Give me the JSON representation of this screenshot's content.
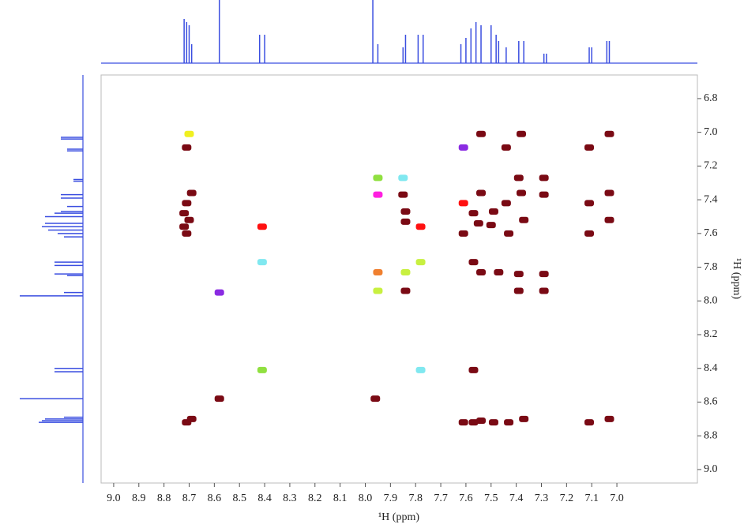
{
  "chart_data": {
    "type": "cosy",
    "x_label": "¹H (ppm)",
    "y_label": "¹H (ppm)",
    "xlim": [
      9.05,
      6.68
    ],
    "ylim": [
      6.66,
      9.08
    ],
    "xticks": [
      {
        "value": 9,
        "label": "9.0"
      },
      8.9,
      8.8,
      8.7,
      8.6,
      8.5,
      8.4,
      8.3,
      8.2,
      8.1,
      {
        "value": 8,
        "label": "8.0"
      },
      7.9,
      7.8,
      7.7,
      7.6,
      7.5,
      7.4,
      7.3,
      7.2,
      7.1,
      {
        "value": 7,
        "label": "7.0"
      }
    ],
    "yticks": [
      6.8,
      {
        "value": 7,
        "label": "7.0"
      },
      7.2,
      7.4,
      7.6,
      7.8,
      {
        "value": 8,
        "label": "8.0"
      },
      8.2,
      8.4,
      8.6,
      8.8,
      {
        "value": 9,
        "label": "9.0"
      }
    ],
    "x": [
      8.7,
      8.71,
      8.69,
      8.71,
      8.72,
      8.72,
      8.71,
      8.7,
      8.58,
      8.58,
      8.71,
      8.69,
      8.41,
      8.41,
      8.41,
      7.95,
      7.95,
      7.95,
      7.95,
      7.96,
      7.85,
      7.85,
      7.84,
      7.84,
      7.84,
      7.84,
      7.78,
      7.78,
      7.78,
      7.61,
      7.61,
      7.61,
      7.61,
      7.54,
      7.54,
      7.57,
      7.55,
      7.57,
      7.54,
      7.57,
      7.57,
      7.54,
      7.49,
      7.5,
      7.47,
      7.49,
      7.44,
      7.44,
      7.43,
      7.43,
      7.38,
      7.39,
      7.38,
      7.37,
      7.39,
      7.39,
      7.37,
      7.29,
      7.29,
      7.29,
      7.29,
      7.11,
      7.11,
      7.11,
      7.11,
      7.03,
      7.03,
      7.03,
      7.03
    ],
    "y": [
      7.01,
      7.09,
      7.36,
      7.42,
      7.48,
      7.56,
      7.6,
      7.52,
      7.95,
      8.58,
      8.72,
      8.7,
      7.56,
      7.77,
      8.41,
      7.27,
      7.37,
      7.83,
      7.94,
      8.58,
      7.27,
      7.37,
      7.47,
      7.53,
      7.83,
      7.94,
      7.56,
      7.77,
      8.41,
      7.09,
      7.42,
      7.6,
      8.72,
      7.01,
      7.36,
      7.48,
      7.54,
      7.77,
      7.83,
      8.41,
      8.72,
      8.71,
      7.47,
      7.55,
      7.83,
      8.72,
      7.09,
      7.42,
      7.6,
      8.72,
      7.01,
      7.27,
      7.36,
      7.52,
      7.84,
      7.94,
      8.7,
      7.27,
      7.37,
      7.84,
      7.94,
      7.09,
      7.42,
      7.6,
      8.72,
      7.01,
      7.36,
      7.52,
      8.7
    ],
    "colors": [
      "#f0f020",
      "#7a0a14",
      "#7a0a14",
      "#7a0a14",
      "#7a0a14",
      "#7a0a14",
      "#7a0a14",
      "#7a0a14",
      "#8a2be2",
      "#7a0a14",
      "#7a0a14",
      "#7a0a14",
      "#ff1010",
      "#80e8f0",
      "#90e040",
      "#90e040",
      "#ff20e0",
      "#f08030",
      "#c8f040",
      "#7a0a14",
      "#80e8f0",
      "#7a0a14",
      "#7a0a14",
      "#7a0a14",
      "#c8f040",
      "#7a0a14",
      "#ff1010",
      "#c8f040",
      "#80e8f0",
      "#8a2be2",
      "#ff1010",
      "#7a0a14",
      "#7a0a14",
      "#7a0a14",
      "#7a0a14",
      "#7a0a14",
      "#7a0a14",
      "#7a0a14",
      "#7a0a14",
      "#7a0a14",
      "#7a0a14",
      "#7a0a14",
      "#7a0a14",
      "#7a0a14",
      "#7a0a14",
      "#7a0a14",
      "#7a0a14",
      "#7a0a14",
      "#7a0a14",
      "#7a0a14",
      "#7a0a14",
      "#7a0a14",
      "#7a0a14",
      "#7a0a14",
      "#7a0a14",
      "#7a0a14",
      "#7a0a14",
      "#7a0a14",
      "#7a0a14",
      "#7a0a14",
      "#7a0a14",
      "#7a0a14",
      "#7a0a14",
      "#7a0a14",
      "#7a0a14",
      "#7a0a14",
      "#7a0a14",
      "#7a0a14",
      "#7a0a14"
    ],
    "projection": {
      "color": "#3a4ee0",
      "x": [
        8.72,
        8.71,
        8.7,
        8.69,
        8.58,
        8.42,
        8.4,
        7.97,
        7.95,
        7.85,
        7.84,
        7.79,
        7.77,
        7.62,
        7.6,
        7.58,
        7.56,
        7.54,
        7.5,
        7.48,
        7.47,
        7.44,
        7.39,
        7.37,
        7.29,
        7.28,
        7.11,
        7.1,
        7.04,
        7.03
      ],
      "heights": [
        70,
        65,
        60,
        30,
        100,
        45,
        45,
        100,
        30,
        25,
        45,
        45,
        45,
        30,
        40,
        55,
        65,
        60,
        60,
        45,
        35,
        25,
        35,
        35,
        15,
        15,
        25,
        25,
        35,
        35
      ]
    }
  }
}
